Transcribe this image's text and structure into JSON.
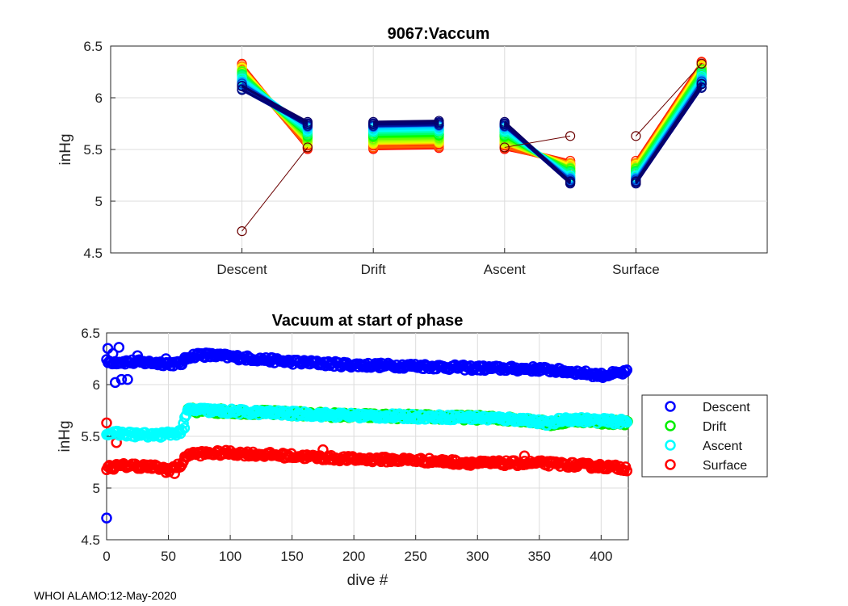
{
  "chart_data": [
    {
      "type": "line",
      "title": "9067:Vaccum",
      "xlabel": "",
      "ylabel": "inHg",
      "xlim": [
        0,
        5
      ],
      "ylim": [
        4.5,
        6.5
      ],
      "yticks": [
        4.5,
        5,
        5.5,
        6,
        6.5
      ],
      "categories": [
        "Descent",
        "Drift",
        "Ascent",
        "Surface"
      ],
      "category_x": [
        1,
        2,
        3,
        4
      ],
      "grid": true,
      "color_order": "rainbow: red (early dives) to dark blue (late dives)",
      "series_summary": [
        {
          "segment": "Descent",
          "x": [
            1,
            1.5
          ],
          "y_start_range": [
            6.02,
            6.35
          ],
          "y_end_range": [
            5.5,
            5.77
          ]
        },
        {
          "segment": "Drift",
          "x": [
            2,
            2.5
          ],
          "y_start_range": [
            5.5,
            5.77
          ],
          "y_end_range": [
            5.5,
            5.77
          ]
        },
        {
          "segment": "Ascent",
          "x": [
            3,
            3.5
          ],
          "y_start_range": [
            5.5,
            5.77
          ],
          "y_end_range": [
            5.15,
            5.44
          ]
        },
        {
          "segment": "Surface",
          "x": [
            4,
            4.5
          ],
          "y_start_range": [
            5.15,
            5.44
          ],
          "y_end_range": [
            6.02,
            6.35
          ]
        }
      ],
      "outliers": [
        {
          "x": [
            1,
            1.5
          ],
          "y": [
            4.71,
            5.52
          ]
        },
        {
          "x": [
            3,
            3.5
          ],
          "y": [
            5.52,
            5.63
          ]
        },
        {
          "x": [
            4,
            4.5
          ],
          "y": [
            5.63,
            6.33
          ]
        }
      ]
    },
    {
      "type": "scatter",
      "title": "Vacuum at start of phase",
      "xlabel": "dive #",
      "ylabel": "inHg",
      "xlim": [
        0,
        422
      ],
      "ylim": [
        4.5,
        6.5
      ],
      "xticks": [
        0,
        50,
        100,
        150,
        200,
        250,
        300,
        350,
        400
      ],
      "yticks": [
        4.5,
        5,
        5.5,
        6,
        6.5
      ],
      "grid": true,
      "legend_position": "outside-right",
      "series": [
        {
          "name": "Descent",
          "color": "#0000ff",
          "trend_x": [
            0,
            20,
            40,
            60,
            66,
            75,
            100,
            150,
            200,
            250,
            300,
            350,
            380,
            400,
            422
          ],
          "trend_y": [
            6.22,
            6.22,
            6.21,
            6.2,
            6.27,
            6.29,
            6.27,
            6.22,
            6.19,
            6.18,
            6.16,
            6.15,
            6.12,
            6.09,
            6.12
          ],
          "outliers": [
            [
              0,
              4.71
            ],
            [
              1,
              6.35
            ],
            [
              3,
              6.22
            ],
            [
              5,
              6.3
            ],
            [
              7,
              6.02
            ],
            [
              10,
              6.36
            ],
            [
              12,
              6.05
            ],
            [
              17,
              6.05
            ],
            [
              25,
              6.28
            ],
            [
              48,
              6.25
            ]
          ]
        },
        {
          "name": "Drift",
          "color": "#00ee00",
          "trend_x": [
            66,
            100,
            150,
            200,
            250,
            300,
            340,
            360,
            380,
            400,
            422
          ],
          "trend_y": [
            5.75,
            5.74,
            5.72,
            5.7,
            5.69,
            5.68,
            5.66,
            5.62,
            5.66,
            5.64,
            5.63
          ],
          "outliers": []
        },
        {
          "name": "Ascent",
          "color": "#00ffff",
          "trend_x": [
            0,
            20,
            40,
            60,
            66,
            100,
            150,
            200,
            250,
            300,
            340,
            358,
            370,
            400,
            422
          ],
          "trend_y": [
            5.53,
            5.52,
            5.51,
            5.54,
            5.76,
            5.74,
            5.72,
            5.7,
            5.69,
            5.68,
            5.66,
            5.62,
            5.67,
            5.65,
            5.64
          ],
          "outliers": [
            [
              45,
              5.5
            ],
            [
              63,
              5.58
            ]
          ]
        },
        {
          "name": "Surface",
          "color": "#ff0000",
          "trend_x": [
            0,
            20,
            40,
            50,
            60,
            66,
            100,
            150,
            200,
            250,
            300,
            350,
            400,
            422
          ],
          "trend_y": [
            5.2,
            5.22,
            5.2,
            5.18,
            5.22,
            5.33,
            5.34,
            5.31,
            5.28,
            5.27,
            5.24,
            5.24,
            5.21,
            5.19
          ],
          "outliers": [
            [
              0,
              5.63
            ],
            [
              8,
              5.44
            ],
            [
              48,
              5.15
            ],
            [
              55,
              5.14
            ],
            [
              175,
              5.37
            ],
            [
              338,
              5.31
            ]
          ]
        }
      ]
    }
  ],
  "footer": "WHOI ALAMO:12-May-2020"
}
